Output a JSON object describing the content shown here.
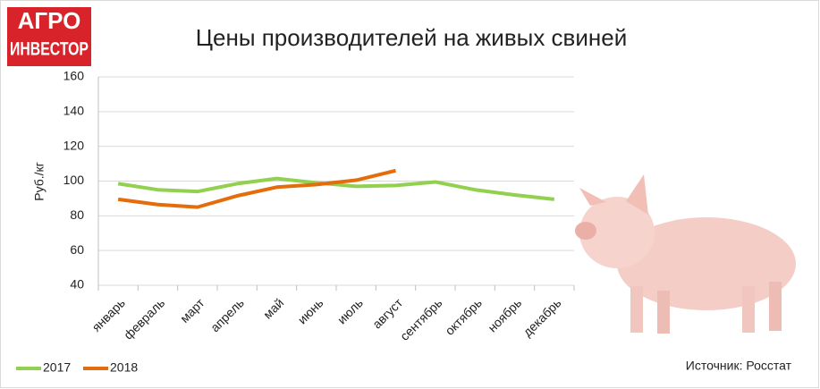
{
  "logo": {
    "lines": [
      "АГРО",
      "ИНВЕСТОР"
    ]
  },
  "chart_data": {
    "type": "line",
    "title": "Цены производителей на живых свиней",
    "y_label": "Руб./кг",
    "source": "Источник: Росстат",
    "categories": [
      "январь",
      "февраль",
      "март",
      "апрель",
      "май",
      "июнь",
      "июль",
      "август",
      "сентябрь",
      "октябрь",
      "ноябрь",
      "декабрь"
    ],
    "series": [
      {
        "name": "2017",
        "color": "#92d050",
        "values": [
          98.5,
          95,
          94,
          98.5,
          101.5,
          99,
          97,
          97.5,
          99.5,
          95,
          92,
          89.5
        ]
      },
      {
        "name": "2018",
        "color": "#e46c0a",
        "values": [
          89.5,
          86.5,
          85,
          91.5,
          96.5,
          98,
          100.5,
          106,
          null,
          null,
          null,
          null
        ]
      }
    ],
    "ylim": [
      40,
      160
    ],
    "yticks": [
      40,
      60,
      80,
      100,
      120,
      140,
      160
    ],
    "grid": true,
    "legend": "bottom-left"
  }
}
